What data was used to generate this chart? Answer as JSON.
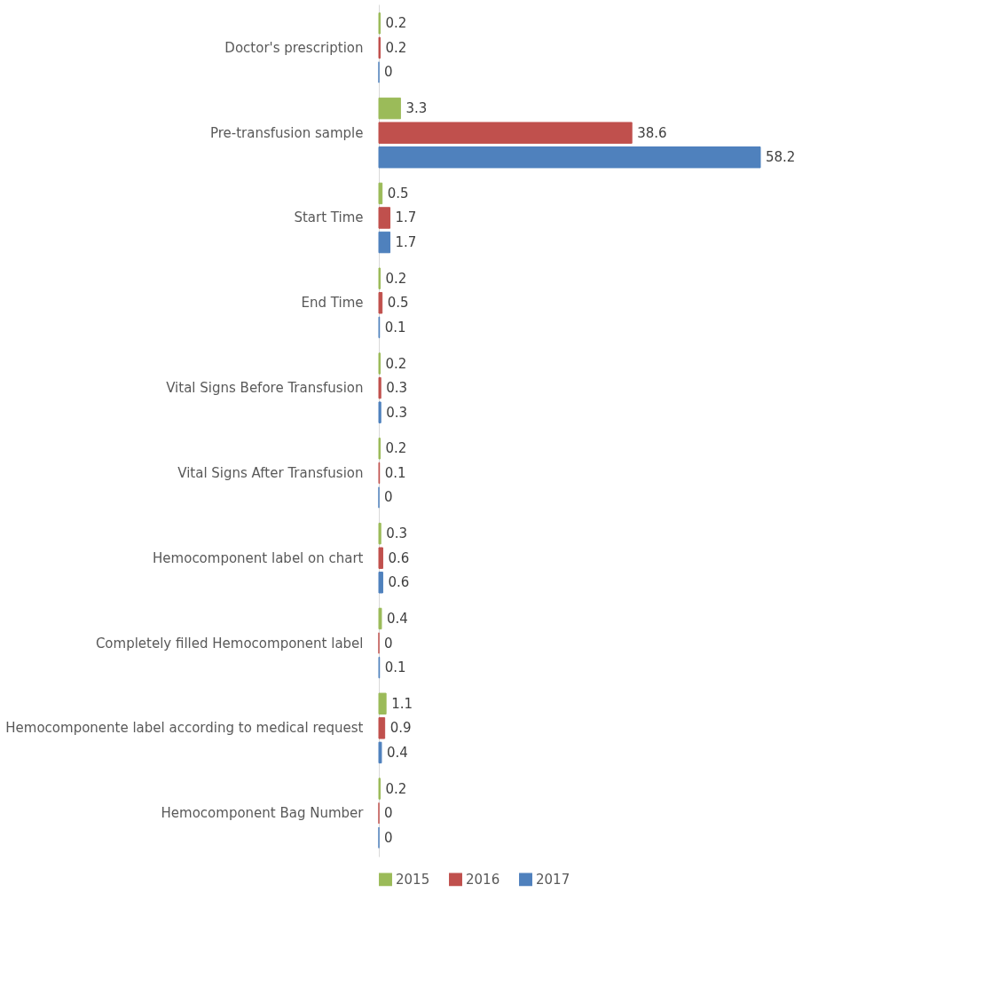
{
  "chart_data": {
    "type": "bar",
    "orientation": "horizontal",
    "data_labels": true,
    "legend": "bottom",
    "categories": [
      "Doctor's prescription",
      "Pre-transfusion sample",
      "Start Time",
      "End Time",
      "Vital Signs Before Transfusion",
      "Vital Signs After Transfusion",
      "Hemocomponent label on chart",
      "Completely filled Hemocomponent label",
      "Hemocomponente label according to medical request",
      "Hemocomponent Bag Number"
    ],
    "series": [
      {
        "name": "2015",
        "color": "#9bbb59",
        "values": [
          0.2,
          3.3,
          0.5,
          0.2,
          0.2,
          0.2,
          0.3,
          0.4,
          1.1,
          0.2
        ]
      },
      {
        "name": "2016",
        "color": "#c0504d",
        "values": [
          0.2,
          38.6,
          1.7,
          0.5,
          0.3,
          0.1,
          0.6,
          0,
          0.9,
          0
        ]
      },
      {
        "name": "2017",
        "color": "#4f81bd",
        "values": [
          0,
          58.2,
          1.7,
          0.1,
          0.3,
          0,
          0.6,
          0.1,
          0.4,
          0
        ]
      }
    ]
  }
}
